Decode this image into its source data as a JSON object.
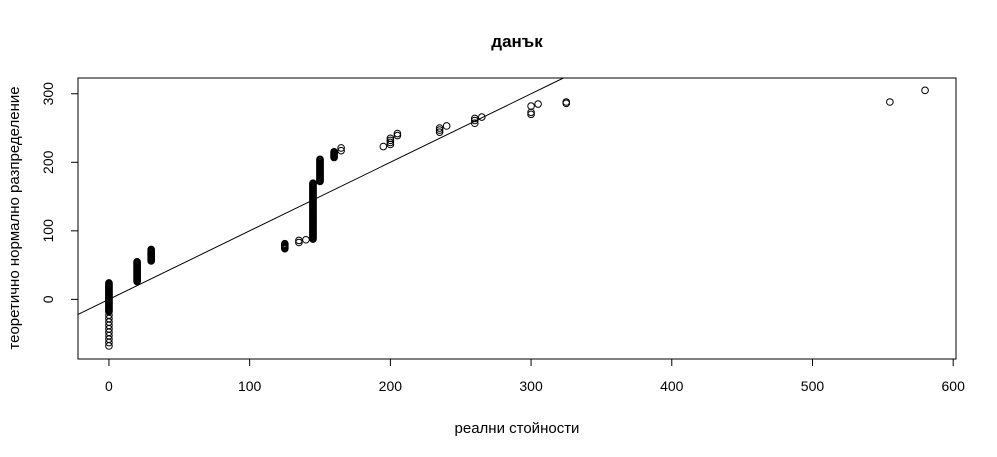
{
  "chart_data": {
    "type": "scatter",
    "title": "данък",
    "xlabel": "реални стойности",
    "ylabel": "теоретично нормално разпределение",
    "xlim": [
      -22,
      602
    ],
    "ylim": [
      -87,
      323
    ],
    "x_ticks": [
      0,
      100,
      200,
      300,
      400,
      500,
      600
    ],
    "y_ticks": [
      0,
      100,
      200,
      300
    ],
    "grid": false,
    "legend": "none",
    "marker": "open-circle",
    "reference_line": {
      "intercept": 0,
      "slope": 1
    },
    "clusters": [
      {
        "x": 0,
        "y_min": -68,
        "y_max": 25,
        "sparse_below": -18
      },
      {
        "x": 20,
        "y_min": 26,
        "y_max": 55
      },
      {
        "x": 30,
        "y_min": 56,
        "y_max": 73
      },
      {
        "x": 125,
        "y_min": 74,
        "y_max": 82
      },
      {
        "x": 145,
        "y_min": 88,
        "y_max": 170
      },
      {
        "x": 150,
        "y_min": 172,
        "y_max": 205
      },
      {
        "x": 160,
        "y_min": 207,
        "y_max": 216
      }
    ],
    "points": [
      {
        "x": 135,
        "y": 83
      },
      {
        "x": 135,
        "y": 86
      },
      {
        "x": 140,
        "y": 87
      },
      {
        "x": 165,
        "y": 217
      },
      {
        "x": 165,
        "y": 221
      },
      {
        "x": 195,
        "y": 223
      },
      {
        "x": 200,
        "y": 226
      },
      {
        "x": 200,
        "y": 229
      },
      {
        "x": 200,
        "y": 232
      },
      {
        "x": 200,
        "y": 235
      },
      {
        "x": 205,
        "y": 239
      },
      {
        "x": 205,
        "y": 242
      },
      {
        "x": 235,
        "y": 244
      },
      {
        "x": 235,
        "y": 247
      },
      {
        "x": 235,
        "y": 250
      },
      {
        "x": 240,
        "y": 253
      },
      {
        "x": 260,
        "y": 257
      },
      {
        "x": 260,
        "y": 261
      },
      {
        "x": 260,
        "y": 264
      },
      {
        "x": 265,
        "y": 266
      },
      {
        "x": 300,
        "y": 270
      },
      {
        "x": 300,
        "y": 273
      },
      {
        "x": 300,
        "y": 282
      },
      {
        "x": 305,
        "y": 285
      },
      {
        "x": 325,
        "y": 286
      },
      {
        "x": 325,
        "y": 288
      },
      {
        "x": 555,
        "y": 288
      },
      {
        "x": 580,
        "y": 305
      }
    ]
  }
}
